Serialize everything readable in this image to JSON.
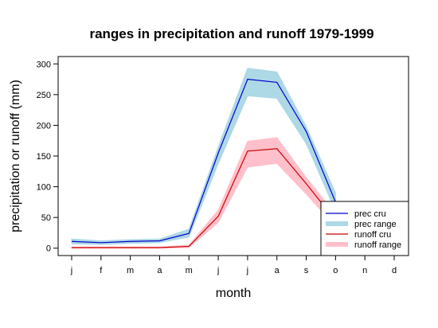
{
  "chart_data": {
    "type": "line",
    "title": "ranges in precipitation and runoff 1979-1999",
    "xlabel": "month",
    "ylabel": "precipitation or runoff (mm)",
    "categories": [
      "j",
      "f",
      "m",
      "a",
      "m",
      "j",
      "j",
      "a",
      "s",
      "o",
      "n",
      "d"
    ],
    "ylim": [
      -12,
      312
    ],
    "yticks": [
      0,
      50,
      100,
      150,
      200,
      250,
      300
    ],
    "grid": false,
    "legend_position": "bottom-right",
    "series": [
      {
        "name": "prec cru",
        "kind": "line",
        "color": "#0000CD",
        "values": [
          11,
          9,
          11,
          12,
          24,
          155,
          275,
          270,
          190,
          75,
          null,
          null
        ]
      },
      {
        "name": "prec range",
        "kind": "band",
        "color": "#ADD8E6",
        "lower": [
          7,
          6,
          8,
          9,
          18,
          138,
          248,
          244,
          170,
          60,
          null,
          null
        ],
        "upper": [
          15,
          12,
          14,
          15,
          31,
          165,
          293,
          287,
          198,
          90,
          null,
          null
        ]
      },
      {
        "name": "runoff cru",
        "kind": "line",
        "color": "#CC0000",
        "values": [
          1,
          1,
          1,
          1,
          3,
          52,
          158,
          162,
          105,
          45,
          null,
          null
        ]
      },
      {
        "name": "runoff range",
        "kind": "band",
        "color": "#FFC0CB",
        "lower": [
          0,
          0,
          0,
          0,
          1,
          42,
          132,
          138,
          88,
          35,
          null,
          null
        ],
        "upper": [
          2,
          2,
          2,
          2,
          5,
          62,
          174,
          180,
          115,
          55,
          null,
          null
        ]
      }
    ]
  },
  "legend": {
    "items": [
      {
        "label": "prec cru",
        "color": "#0000CD",
        "style": "line"
      },
      {
        "label": "prec range",
        "color": "#ADD8E6",
        "style": "thick"
      },
      {
        "label": "runoff cru",
        "color": "#CC0000",
        "style": "line"
      },
      {
        "label": "runoff range",
        "color": "#FFC0CB",
        "style": "thick"
      }
    ]
  }
}
